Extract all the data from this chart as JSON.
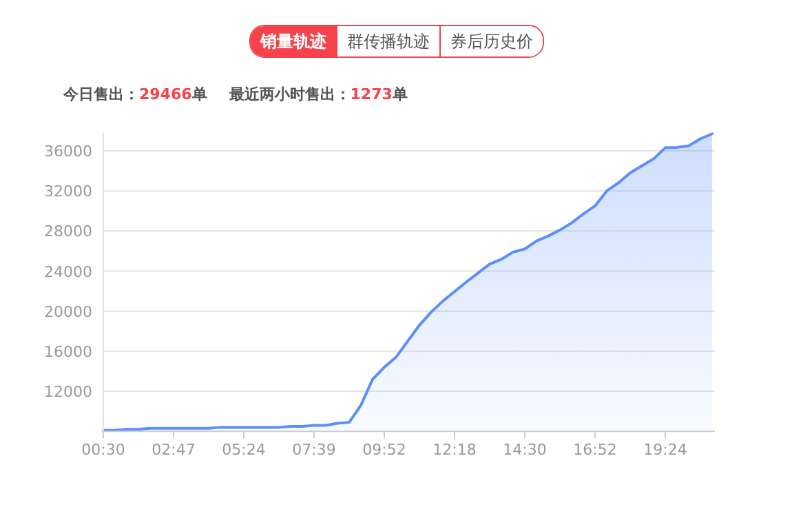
{
  "chart_data": {
    "type": "area",
    "annotations": [
      "销量轨迹",
      "群传播轨迹",
      "券后历史价",
      "今日售出：29466单",
      "最近两小时售出：1273单"
    ],
    "categories": [
      "00:30",
      null,
      null,
      null,
      null,
      null,
      "02:47",
      null,
      null,
      null,
      null,
      null,
      "05:24",
      null,
      null,
      null,
      null,
      null,
      "07:39",
      null,
      null,
      null,
      null,
      null,
      "09:52",
      null,
      null,
      null,
      null,
      null,
      "12:18",
      null,
      null,
      null,
      null,
      null,
      "14:30",
      null,
      null,
      null,
      null,
      null,
      "16:52",
      null,
      null,
      null,
      null,
      null,
      "19:24",
      null,
      null,
      null,
      null
    ],
    "series": [
      {
        "color": "#5b8ff9",
        "values": [
          8100,
          8100,
          8200,
          8200,
          8300,
          8300,
          8300,
          8300,
          8300,
          8300,
          8400,
          8400,
          8400,
          8400,
          8400,
          8400,
          8500,
          8500,
          8600,
          8600,
          8800,
          8900,
          10600,
          13200,
          14400,
          15400,
          17000,
          18600,
          19900,
          21000,
          21950,
          22900,
          23800,
          24700,
          25170,
          25900,
          26200,
          27000,
          27500,
          28100,
          28800,
          29700,
          30500,
          32000,
          32800,
          33800,
          34500,
          35200,
          36300,
          36350,
          36500,
          37200,
          37700
        ]
      }
    ],
    "ylim": [
      8000,
      37800
    ],
    "yticks": [
      12000,
      16000,
      20000,
      24000,
      28000,
      32000,
      36000
    ],
    "grid": "y"
  }
}
